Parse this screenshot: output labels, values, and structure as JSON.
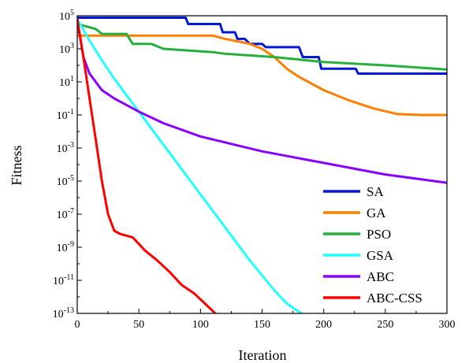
{
  "chart_data": {
    "type": "line",
    "xlabel": "Iteration",
    "ylabel": "Fitness",
    "xlim": [
      0,
      300
    ],
    "ylim_exponent": [
      -13,
      5
    ],
    "yscale": "log",
    "grid": false,
    "legend_placement": "bottom-right",
    "x_ticks": [
      "0",
      "50",
      "100",
      "150",
      "200",
      "250",
      "300"
    ],
    "y_ticks": [
      {
        "base": "10",
        "exp": "5"
      },
      {
        "base": "10",
        "exp": "3"
      },
      {
        "base": "10",
        "exp": "1"
      },
      {
        "base": "10",
        "exp": "-1"
      },
      {
        "base": "10",
        "exp": "-3"
      },
      {
        "base": "10",
        "exp": "-5"
      },
      {
        "base": "10",
        "exp": "-7"
      },
      {
        "base": "10",
        "exp": "-9"
      },
      {
        "base": "10",
        "exp": "-11"
      },
      {
        "base": "10",
        "exp": "-13"
      }
    ],
    "series": [
      {
        "name": "SA",
        "color": "#0019d9",
        "x": [
          0,
          88,
          90,
          116,
          118,
          128,
          130,
          136,
          140,
          150,
          153,
          180,
          183,
          196,
          198,
          226,
          228,
          300
        ],
        "log10_y": [
          4.88,
          4.88,
          4.5,
          4.5,
          4.0,
          4.0,
          3.6,
          3.6,
          3.3,
          3.3,
          3.1,
          3.1,
          2.5,
          2.5,
          1.8,
          1.8,
          1.5,
          1.5
        ]
      },
      {
        "name": "GA",
        "color": "#ff8000",
        "x": [
          0,
          10,
          40,
          80,
          110,
          120,
          140,
          150,
          160,
          170,
          180,
          200,
          220,
          240,
          260,
          280,
          300
        ],
        "log10_y": [
          3.8,
          3.8,
          3.8,
          3.8,
          3.8,
          3.6,
          3.3,
          3.0,
          2.5,
          1.8,
          1.3,
          0.5,
          -0.1,
          -0.6,
          -0.95,
          -1.0,
          -1.0
        ]
      },
      {
        "name": "PSO",
        "color": "#24b03a",
        "x": [
          0,
          15,
          20,
          40,
          45,
          60,
          70,
          110,
          120,
          160,
          200,
          250,
          300
        ],
        "log10_y": [
          4.5,
          4.2,
          3.9,
          3.9,
          3.3,
          3.3,
          3.0,
          2.8,
          2.7,
          2.5,
          2.2,
          2.0,
          1.75
        ]
      },
      {
        "name": "GSA",
        "color": "#22ffff",
        "x": [
          0,
          10,
          20,
          30,
          40,
          50,
          70,
          100,
          120,
          140,
          160,
          170,
          182
        ],
        "log10_y": [
          4.8,
          3.5,
          2.3,
          1.2,
          0.2,
          -0.8,
          -2.8,
          -5.8,
          -7.8,
          -9.8,
          -11.6,
          -12.4,
          -13.0
        ]
      },
      {
        "name": "ABC",
        "color": "#8a00ff",
        "x": [
          0,
          5,
          10,
          20,
          30,
          50,
          70,
          100,
          150,
          200,
          250,
          300
        ],
        "log10_y": [
          4.8,
          2.5,
          1.5,
          0.5,
          0.0,
          -0.8,
          -1.5,
          -2.3,
          -3.2,
          -3.9,
          -4.6,
          -5.1
        ]
      },
      {
        "name": "ABC-CSS",
        "color": "#ff0000",
        "x": [
          0,
          5,
          10,
          15,
          20,
          25,
          30,
          35,
          45,
          50,
          55,
          65,
          75,
          85,
          95,
          105,
          112
        ],
        "log10_y": [
          4.8,
          2.5,
          0.0,
          -2.5,
          -5.0,
          -7.0,
          -8.0,
          -8.2,
          -8.4,
          -8.8,
          -9.2,
          -9.8,
          -10.5,
          -11.3,
          -11.8,
          -12.5,
          -13.0
        ]
      }
    ]
  }
}
